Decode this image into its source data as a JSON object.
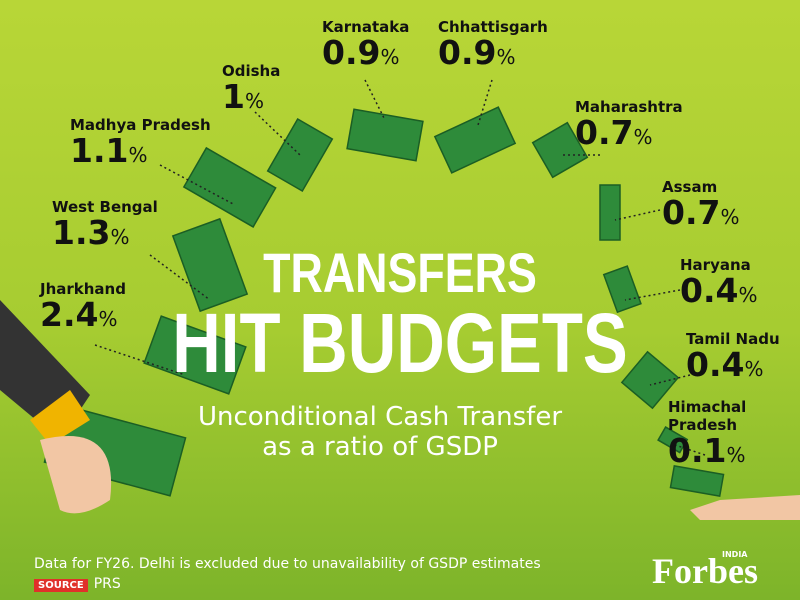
{
  "header": {
    "title_line1": "TRANSFERS",
    "title_line2": "HIT BUDGETS",
    "subtitle_line1": "Unconditional Cash Transfer",
    "subtitle_line2": "as a ratio of GSDP"
  },
  "states": [
    {
      "name": "Karnataka",
      "value": "0.9",
      "unit": "%"
    },
    {
      "name": "Chhattisgarh",
      "value": "0.9",
      "unit": "%"
    },
    {
      "name": "Odisha",
      "value": "1",
      "unit": "%"
    },
    {
      "name": "Maharashtra",
      "value": "0.7",
      "unit": "%"
    },
    {
      "name": "Madhya Pradesh",
      "value": "1.1",
      "unit": "%"
    },
    {
      "name": "Assam",
      "value": "0.7",
      "unit": "%"
    },
    {
      "name": "West Bengal",
      "value": "1.3",
      "unit": "%"
    },
    {
      "name": "Haryana",
      "value": "0.4",
      "unit": "%"
    },
    {
      "name": "Jharkhand",
      "value": "2.4",
      "unit": "%"
    },
    {
      "name": "Tamil Nadu",
      "value": "0.4",
      "unit": "%"
    },
    {
      "name": "Himachal Pradesh",
      "value": "0.1",
      "unit": "%"
    }
  ],
  "footer": {
    "note": "Data for FY26. Delhi is excluded due to unavailability of GSDP estimates",
    "source_tag": "SOURCE",
    "source": "PRS",
    "logo_edition": "INDIA",
    "logo": "Forbes"
  }
}
